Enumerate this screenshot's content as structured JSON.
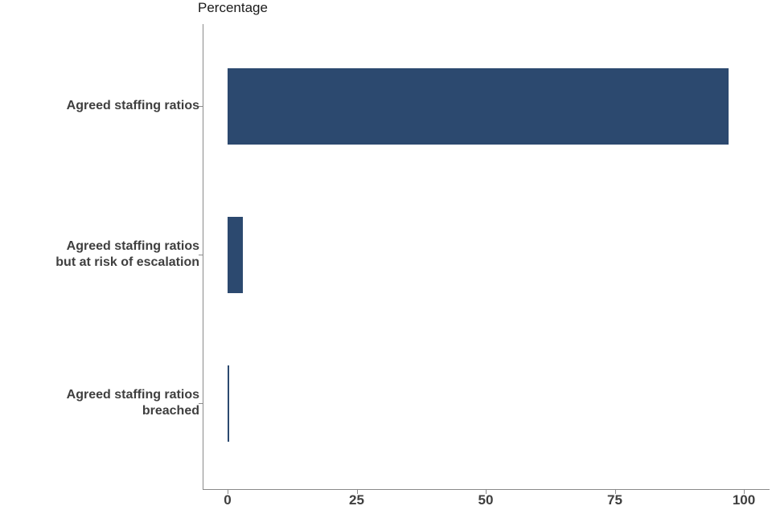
{
  "chart_data": {
    "type": "bar",
    "orientation": "horizontal",
    "title": "Percentage",
    "categories": [
      "Agreed staffing ratios",
      "Agreed staffing ratios but at risk of escalation",
      "Agreed staffing ratios breached"
    ],
    "category_lines": [
      [
        "Agreed staffing ratios"
      ],
      [
        "Agreed staffing ratios",
        "but at risk of escalation"
      ],
      [
        "Agreed staffing ratios",
        "breached"
      ]
    ],
    "values": [
      97,
      3,
      0.3
    ],
    "xlabel": "Percentage",
    "ylabel": "",
    "xlim": [
      0,
      100
    ],
    "xticks": [
      0,
      25,
      50,
      75,
      100
    ],
    "bar_color": "#2c496f",
    "axis_color": "#8a8a8a",
    "text_color": "#3f3f3f",
    "grid": false,
    "legend": "none"
  }
}
